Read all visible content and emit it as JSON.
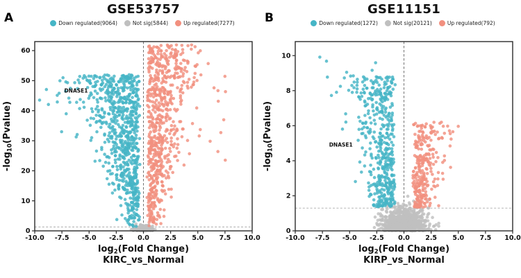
{
  "panels": [
    {
      "panel_label": "A",
      "title": "GSE53757",
      "legend": [
        {
          "label": "Down regulated(9064)",
          "color": "#45B5C6"
        },
        {
          "label": "Not sig(5844)",
          "color": "#BFBFBF"
        },
        {
          "label": "Up regulated(7277)",
          "color": "#F2907F"
        }
      ]
    },
    {
      "panel_label": "B",
      "title": "GSE11151",
      "legend": [
        {
          "label": "Down regulated(1272)",
          "color": "#45B5C6"
        },
        {
          "label": "Not sig(20121)",
          "color": "#BFBFBF"
        },
        {
          "label": "Up regulated(792)",
          "color": "#F2907F"
        }
      ]
    }
  ],
  "chart_data": [
    {
      "type": "scatter",
      "subtype": "volcano",
      "title": "GSE53757",
      "xlabel": {
        "pre": "log",
        "sub": "2",
        "post": "(Fold Change)"
      },
      "xlabel_line2": "KIRC_vs_Normal",
      "ylabel": {
        "pre": "-log",
        "sub": "10",
        "post": "(Pvalue)"
      },
      "xlim": [
        -10,
        10
      ],
      "ylim": [
        0,
        63
      ],
      "xticks": [
        "-10.0",
        "-7.5",
        "-5.0",
        "-2.5",
        "0.0",
        "2.5",
        "5.0",
        "7.5",
        "10.0"
      ],
      "yticks": [
        "0",
        "10",
        "20",
        "30",
        "40",
        "50",
        "60"
      ],
      "thresholds": {
        "vline_x": 0,
        "hline_y": 1.3
      },
      "legend_position": "top",
      "grid": false,
      "seed": 20230531,
      "series": [
        {
          "name": "Not sig",
          "count": 5844,
          "color": "#BFBFBF",
          "order": 0,
          "gen": {
            "kind": "mid",
            "n": 320,
            "xsd": 0.38,
            "xmax": 1.15,
            "ysd": 0.75,
            "ycap": 2.4
          }
        },
        {
          "name": "Down regulated",
          "count": 9064,
          "color": "#45B5C6",
          "order": 1,
          "gen": {
            "kind": "down",
            "n": 760,
            "ymin": 1.4,
            "ymax": 52,
            "yexp": 0.75,
            "x0": 0.3,
            "spread0": 0.5,
            "spread1": 2.9,
            "outliers": {
              "n": 12,
              "x": [
                -9.6,
                -5.5
              ],
              "y": [
                40,
                50
              ]
            }
          }
        },
        {
          "name": "Up regulated",
          "count": 7277,
          "color": "#F2907F",
          "order": 2,
          "gen": {
            "kind": "up",
            "n": 700,
            "ymin": 1.4,
            "ymax": 62,
            "yexp": 0.8,
            "x0": 0.3,
            "spread0": 0.5,
            "spread1": 2.4,
            "outliers": {
              "n": 12,
              "x": [
                4.5,
                7.7
              ],
              "y": [
                20,
                52
              ]
            }
          }
        }
      ],
      "annotations": [
        {
          "text": "DNASE1",
          "x": -6.2,
          "y": 46,
          "color": "#E31A1C"
        }
      ]
    },
    {
      "type": "scatter",
      "subtype": "volcano",
      "title": "GSE11151",
      "xlabel": {
        "pre": "log",
        "sub": "2",
        "post": "(Fold Change)"
      },
      "xlabel_line2": "KIRP_vs_Normal",
      "ylabel": {
        "pre": "-log",
        "sub": "10",
        "post": "(Pvalue)"
      },
      "xlim": [
        -10,
        10
      ],
      "ylim": [
        0,
        10.8
      ],
      "xticks": [
        "-10.0",
        "-7.5",
        "-5.0",
        "-2.5",
        "0.0",
        "2.5",
        "5.0",
        "7.5",
        "10.0"
      ],
      "yticks": [
        "0",
        "2",
        "4",
        "6",
        "8",
        "10"
      ],
      "thresholds": {
        "vline_x": 0,
        "hline_y": 1.3
      },
      "legend_position": "top",
      "grid": false,
      "seed": 7771313,
      "series": [
        {
          "name": "Not sig",
          "count": 20121,
          "color": "#BFBFBF",
          "order": 0,
          "gen": {
            "kind": "mid",
            "n": 900,
            "xsd": 1.05,
            "xmax": 3.2,
            "ysd": 0.6,
            "ycap": 2.2
          }
        },
        {
          "name": "Down regulated",
          "count": 1272,
          "color": "#45B5C6",
          "order": 1,
          "gen": {
            "kind": "down",
            "n": 470,
            "ymin": 1.35,
            "ymax": 8.8,
            "yexp": 1.15,
            "x0": 0.8,
            "spread0": 0.9,
            "spread1": 2.1,
            "outliers": {
              "n": 10,
              "x": [
                -8.0,
                -1.8
              ],
              "y": [
                7.6,
                10.5
              ]
            }
          }
        },
        {
          "name": "Up regulated",
          "count": 792,
          "color": "#F2907F",
          "order": 2,
          "gen": {
            "kind": "up",
            "n": 290,
            "ymin": 1.35,
            "ymax": 6.2,
            "yexp": 1.3,
            "x0": 0.8,
            "spread0": 0.7,
            "spread1": 1.5,
            "outliers": {
              "n": 6,
              "x": [
                2.2,
                5.6
              ],
              "y": [
                4.4,
                6.5
              ]
            }
          }
        }
      ],
      "annotations": [
        {
          "text": "DNASE1",
          "x": -5.8,
          "y": 4.8,
          "color": "#E31A1C"
        }
      ]
    }
  ]
}
